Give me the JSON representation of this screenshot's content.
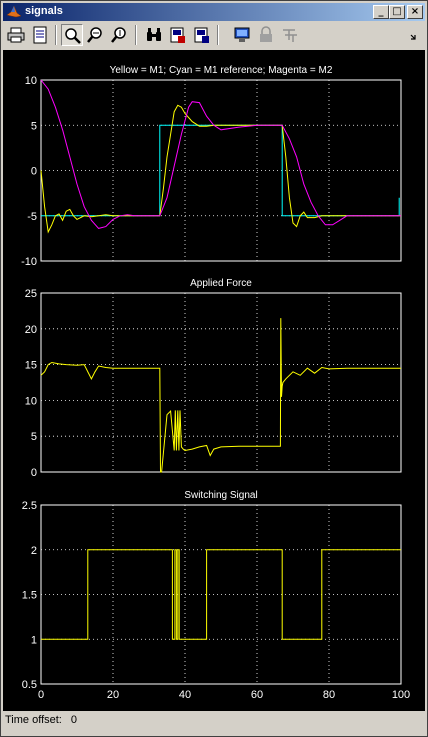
{
  "window": {
    "title": "signals"
  },
  "toolbar": {
    "tools": [
      "print",
      "print-preview",
      "zoom",
      "zoom-in-x",
      "zoom-in-y",
      "find",
      "params",
      "params2",
      "autoscale",
      "lock",
      "trigger"
    ]
  },
  "status": {
    "label": "Time offset:",
    "value": "0"
  },
  "colors": {
    "background": "#000000",
    "axes": "#ffffff",
    "yellow": "#ffff00",
    "cyan": "#00ffff",
    "magenta": "#ff00ff",
    "grid": "#ffffff"
  },
  "chart_data": [
    {
      "type": "line",
      "title": "Yellow = M1;    Cyan = M1 reference;   Magenta = M2",
      "xlim": [
        0,
        100
      ],
      "ylim": [
        -10,
        10
      ],
      "yticks": [
        "10",
        "5",
        "0",
        "-5",
        "-10"
      ],
      "grid": true,
      "series": [
        {
          "color": "#00ffff",
          "x": [
            0,
            33,
            33,
            67,
            67,
            99.5,
            99.5
          ],
          "y": [
            -5,
            -5,
            5,
            5,
            -5,
            -5,
            -3
          ]
        },
        {
          "color": "#ffff00",
          "x": [
            0,
            1,
            2,
            3,
            4,
            5,
            6,
            7,
            8,
            9,
            10,
            12,
            14,
            16,
            18,
            20,
            25,
            30,
            33,
            34,
            35,
            36,
            37,
            38,
            39,
            40,
            42,
            44,
            46,
            48,
            50,
            55,
            60,
            65,
            67,
            68,
            69,
            70,
            71,
            72,
            73,
            74,
            76,
            78,
            80,
            82,
            85,
            90,
            95,
            100
          ],
          "y": [
            0,
            -4,
            -6.8,
            -6,
            -5,
            -4.8,
            -5.5,
            -4.5,
            -4.3,
            -5,
            -5.4,
            -5,
            -5.1,
            -5,
            -4.9,
            -5,
            -5,
            -5,
            -5,
            -2,
            1.5,
            4,
            6.5,
            7.2,
            7,
            6.3,
            5.4,
            4.9,
            4.9,
            5,
            5,
            5,
            5,
            5,
            5,
            1.5,
            -3,
            -5.8,
            -6.2,
            -5,
            -4.6,
            -5.2,
            -5.2,
            -5,
            -5,
            -5,
            -5,
            -5,
            -5,
            -5
          ]
        },
        {
          "color": "#ff00ff",
          "x": [
            0,
            2,
            4,
            6,
            8,
            10,
            12,
            14,
            16,
            18,
            20,
            22,
            24,
            26,
            28,
            30,
            33,
            35,
            37,
            39,
            41,
            42,
            44,
            46,
            48,
            50,
            55,
            60,
            65,
            67,
            69,
            71,
            73,
            75,
            77,
            79,
            81,
            83,
            85,
            88,
            92,
            96,
            100
          ],
          "y": [
            10,
            9,
            7,
            4.5,
            1.5,
            -1.5,
            -4,
            -5.5,
            -6.4,
            -6.2,
            -5.4,
            -5,
            -4.9,
            -5,
            -5,
            -5,
            -5,
            -3,
            0.5,
            4,
            7,
            7.6,
            7.5,
            6,
            5,
            4.5,
            4.8,
            5,
            5,
            5,
            3.5,
            1.5,
            -1.5,
            -3.5,
            -5,
            -6,
            -6,
            -5.5,
            -5,
            -5,
            -5,
            -5,
            -5
          ]
        }
      ]
    },
    {
      "type": "line",
      "title": "Applied Force",
      "xlim": [
        0,
        100
      ],
      "ylim": [
        0,
        25
      ],
      "yticks": [
        "25",
        "20",
        "15",
        "10",
        "5",
        "0"
      ],
      "grid": true,
      "series": [
        {
          "color": "#ffff00",
          "x": [
            0,
            1,
            2,
            3,
            5,
            7,
            10,
            12,
            14,
            15,
            16,
            18,
            20,
            25,
            30,
            33,
            33.2,
            33.5,
            35,
            36,
            37,
            37.3,
            37.6,
            38,
            38.3,
            38.6,
            39,
            39.5,
            40,
            42,
            44,
            46,
            47,
            48,
            50,
            55,
            60,
            65,
            66.5,
            66.6,
            66.8,
            67,
            67.2,
            68,
            70,
            72,
            74,
            76,
            78,
            80,
            85,
            90,
            95,
            100
          ],
          "y": [
            13.5,
            14,
            15,
            15.3,
            15.1,
            15,
            14.9,
            15,
            13,
            14,
            14.8,
            14.6,
            14.5,
            14.5,
            14.5,
            14.5,
            0,
            0,
            8,
            8.5,
            3,
            8.6,
            3,
            8.6,
            3,
            8.6,
            3.5,
            3.2,
            3,
            3.2,
            3.5,
            3.7,
            2.3,
            3.2,
            3.5,
            3.6,
            3.6,
            3.6,
            3.6,
            21.5,
            10.5,
            12,
            12.5,
            13,
            14,
            13.5,
            14.5,
            13.8,
            14.6,
            14.4,
            14.5,
            14.5,
            14.5,
            14.5
          ]
        }
      ]
    },
    {
      "type": "line",
      "title": "Switching Signal",
      "xlim": [
        0,
        100
      ],
      "ylim": [
        0.5,
        2.5
      ],
      "yticks": [
        "2.5",
        "2",
        "1.5",
        "1",
        "0.5"
      ],
      "xticks": [
        "0",
        "20",
        "40",
        "60",
        "80",
        "100"
      ],
      "grid": true,
      "series": [
        {
          "color": "#ffff00",
          "x": [
            0,
            13,
            13,
            36.5,
            36.5,
            37.2,
            37.2,
            37.6,
            37.6,
            38,
            38,
            38.4,
            38.4,
            38.8,
            38.8,
            46,
            46,
            67,
            67,
            78,
            78,
            100
          ],
          "y": [
            1,
            1,
            2,
            2,
            1,
            1,
            2,
            2,
            1,
            1,
            2,
            2,
            1,
            1,
            1,
            1,
            2,
            2,
            1,
            1,
            2,
            2
          ]
        }
      ]
    }
  ]
}
